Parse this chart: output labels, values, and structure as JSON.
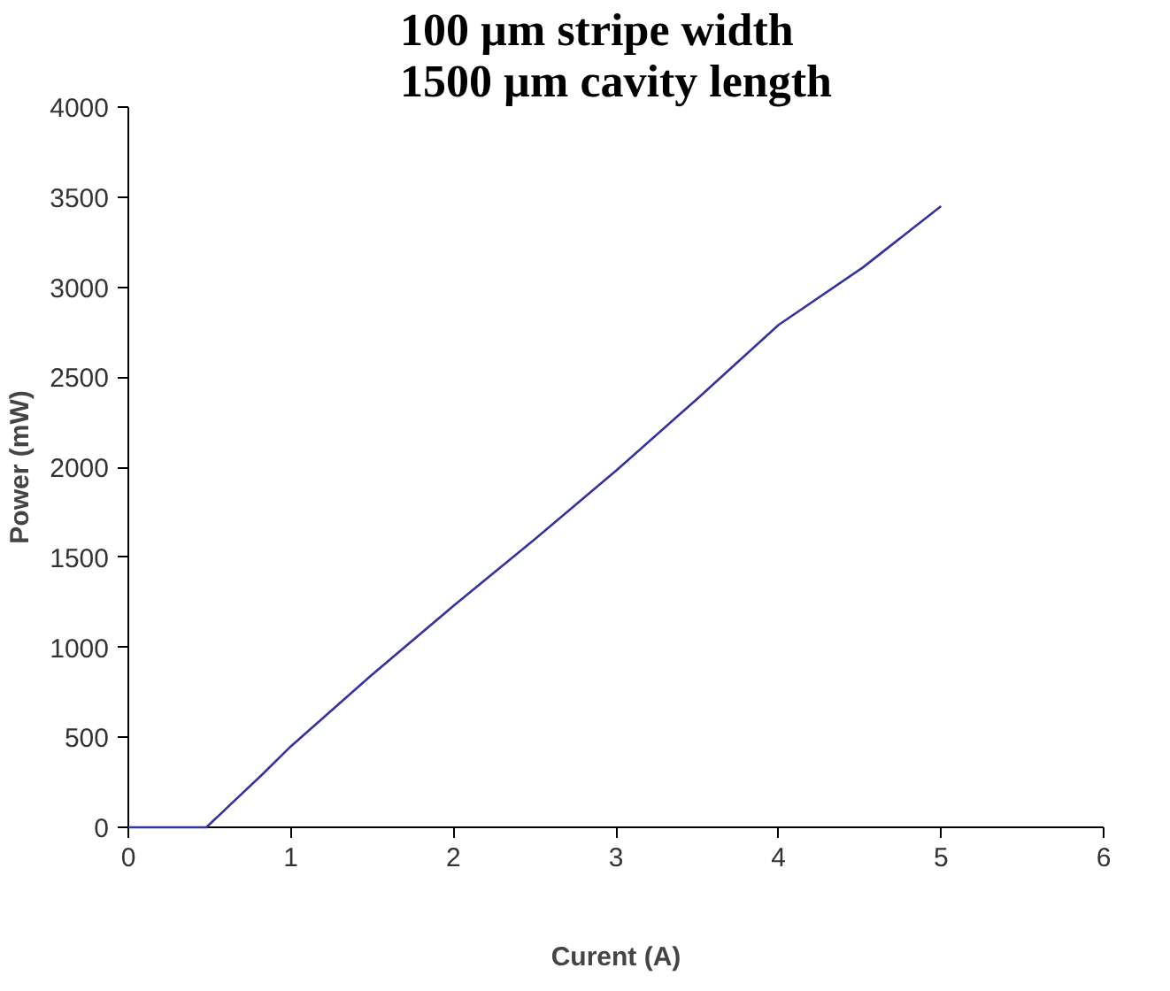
{
  "chart_data": {
    "type": "line",
    "title": "100 µm stripe width\n1500 µm cavity length",
    "xlabel": "Curent (A)",
    "ylabel": "Power (mW)",
    "x": [
      0,
      0.48,
      0.82,
      1,
      1.49,
      2,
      2.5,
      3,
      3.5,
      4,
      4.52,
      5
    ],
    "series": [
      {
        "color": "#333399",
        "values": [
          0,
          0,
          290,
          450,
          840,
          1230,
          1600,
          1980,
          2380,
          2790,
          3110,
          3450
        ]
      }
    ],
    "xlim": [
      0,
      6
    ],
    "xticks": [
      0,
      1,
      2,
      3,
      4,
      5,
      6
    ],
    "ylim": [
      0,
      4000
    ],
    "yticks": [
      0,
      500,
      1000,
      1500,
      2000,
      2500,
      3000,
      3500,
      4000
    ],
    "grid": false,
    "marker": "none",
    "line_style": "solid"
  }
}
